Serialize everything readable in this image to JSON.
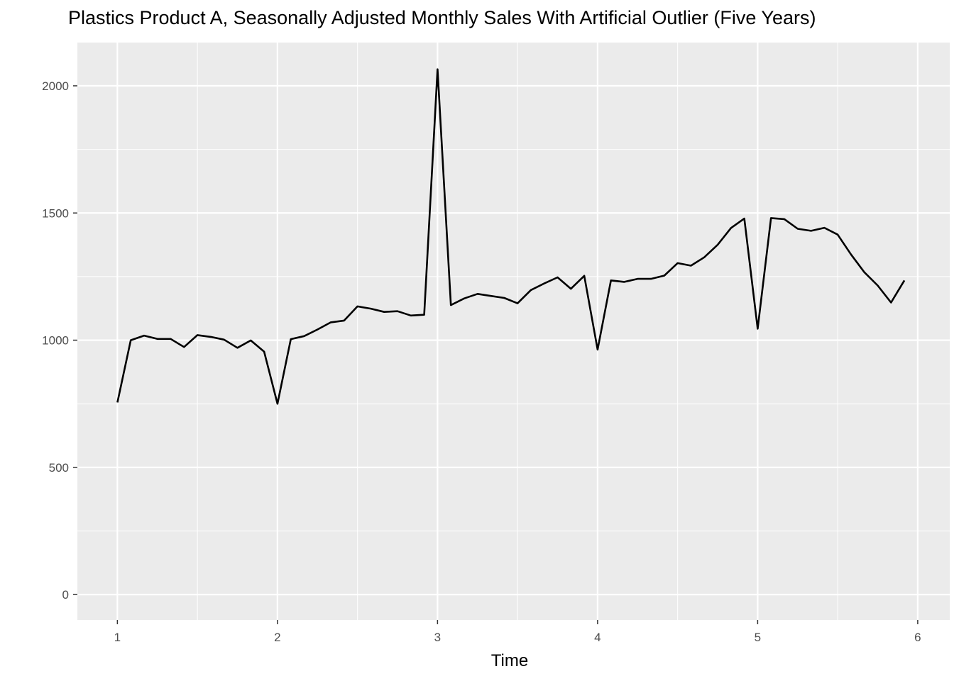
{
  "chart_data": {
    "type": "line",
    "title": "Plastics Product A, Seasonally Adjusted Monthly Sales With Artificial Outlier (Five Years)",
    "xlabel": "Time",
    "ylabel": "",
    "xlim": [
      0.75,
      6.2
    ],
    "ylim": [
      -100,
      2170
    ],
    "x_ticks": [
      1,
      2,
      3,
      4,
      5,
      6
    ],
    "y_ticks": [
      0,
      500,
      1000,
      1500,
      2000
    ],
    "grid": true,
    "series": [
      {
        "color": "#000000",
        "x": [
          1.0,
          1.0833,
          1.1667,
          1.25,
          1.3333,
          1.4167,
          1.5,
          1.5833,
          1.6667,
          1.75,
          1.8333,
          1.9167,
          2.0,
          2.0833,
          2.1667,
          2.25,
          2.3333,
          2.4167,
          2.5,
          2.5833,
          2.6667,
          2.75,
          2.8333,
          2.9167,
          3.0,
          3.0833,
          3.1667,
          3.25,
          3.3333,
          3.4167,
          3.5,
          3.5833,
          3.6667,
          3.75,
          3.8333,
          3.9167,
          4.0,
          4.0833,
          4.1667,
          4.25,
          4.3333,
          4.4167,
          4.5,
          4.5833,
          4.6667,
          4.75,
          4.8333,
          4.9167,
          5.0,
          5.0833,
          5.1667,
          5.25,
          5.3333,
          5.4167,
          5.5,
          5.5833,
          5.6667,
          5.75,
          5.8333,
          5.9167
        ],
        "values": [
          755,
          1000,
          1018,
          1005,
          1005,
          973,
          1020,
          1013,
          1002,
          970,
          999,
          955,
          750,
          1004,
          1016,
          1042,
          1070,
          1077,
          1133,
          1124,
          1111,
          1114,
          1097,
          1100,
          2065,
          1138,
          1164,
          1182,
          1174,
          1166,
          1145,
          1197,
          1223,
          1247,
          1202,
          1253,
          963,
          1235,
          1229,
          1241,
          1241,
          1254,
          1303,
          1293,
          1326,
          1375,
          1441,
          1478,
          1045,
          1480,
          1476,
          1438,
          1430,
          1442,
          1415,
          1337,
          1267,
          1215,
          1148,
          1235
        ]
      }
    ]
  }
}
